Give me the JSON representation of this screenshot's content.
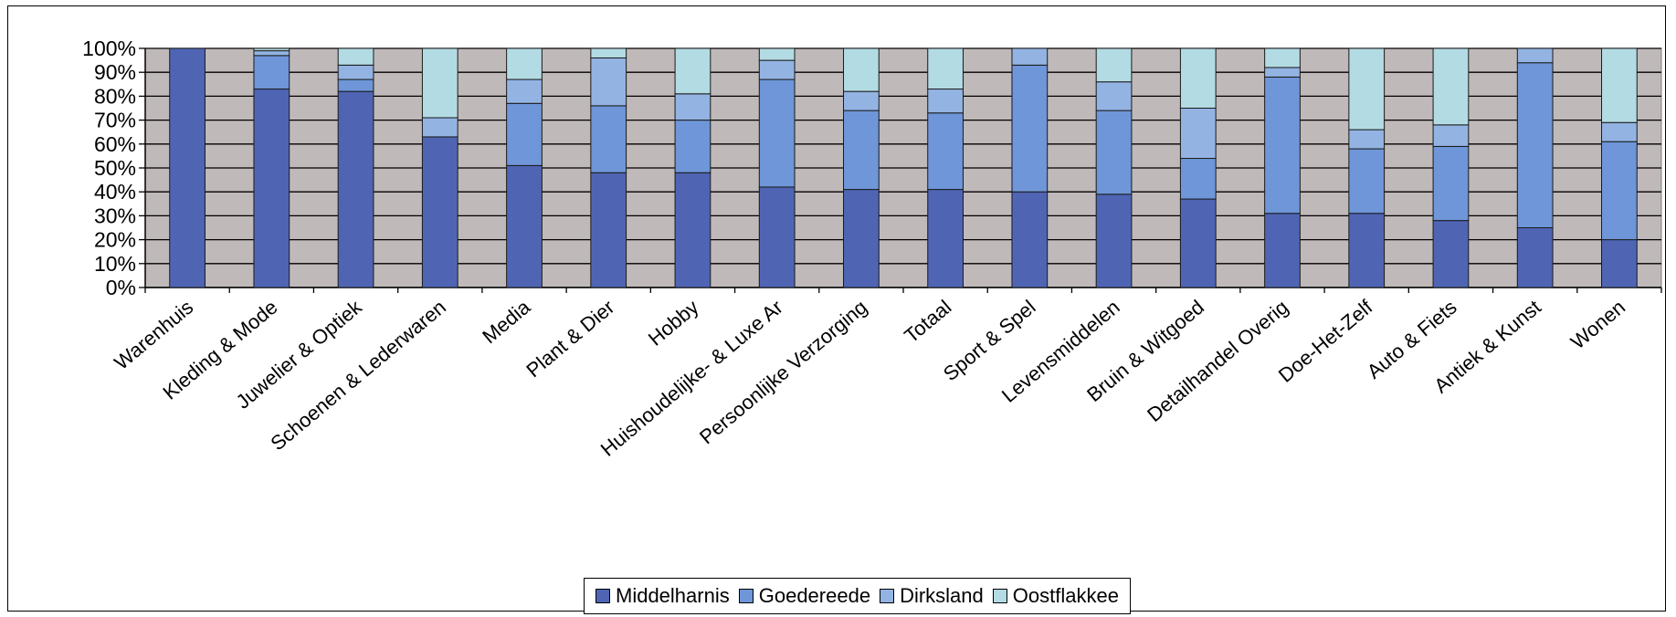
{
  "chart_data": {
    "type": "bar",
    "stacked": true,
    "percent": true,
    "categories": [
      "Warenhuis",
      "Kleding & Mode",
      "Juwelier & Optiek",
      "Schoenen & Lederwaren",
      "Media",
      "Plant & Dier",
      "Hobby",
      "Huishoudelijke- & Luxe Ar",
      "Persoonlijke Verzorging",
      "Totaal",
      "Sport & Spel",
      "Levensmiddelen",
      "Bruin & Witgoed",
      "Detailhandel Overig",
      "Doe-Het-Zelf",
      "Auto & Fiets",
      "Antiek & Kunst",
      "Wonen"
    ],
    "series": [
      {
        "name": "Middelharnis",
        "color": "#4f65b4",
        "values": [
          100,
          83,
          82,
          63,
          51,
          48,
          48,
          42,
          41,
          41,
          40,
          39,
          37,
          31,
          31,
          28,
          25,
          20
        ]
      },
      {
        "name": "Goedereede",
        "color": "#6e96d8",
        "values": [
          0,
          14,
          5,
          0,
          26,
          28,
          22,
          45,
          33,
          32,
          53,
          35,
          17,
          57,
          27,
          31,
          69,
          41
        ]
      },
      {
        "name": "Dirksland",
        "color": "#93b4e3",
        "values": [
          0,
          2,
          6,
          8,
          10,
          20,
          11,
          8,
          8,
          10,
          7,
          12,
          21,
          4,
          8,
          9,
          6,
          8
        ]
      },
      {
        "name": "Oostflakkee",
        "color": "#b3dbe3",
        "values": [
          0,
          1,
          7,
          29,
          13,
          4,
          19,
          5,
          18,
          17,
          0,
          14,
          25,
          8,
          34,
          32,
          0,
          31
        ]
      }
    ],
    "y_tick_labels": [
      "0%",
      "10%",
      "20%",
      "30%",
      "40%",
      "50%",
      "60%",
      "70%",
      "80%",
      "90%",
      "100%"
    ],
    "ylim": [
      0,
      100
    ],
    "grid": true,
    "plot_background": "#c0b9b9",
    "legend_position": "bottom",
    "title": "",
    "xlabel": "",
    "ylabel": ""
  }
}
